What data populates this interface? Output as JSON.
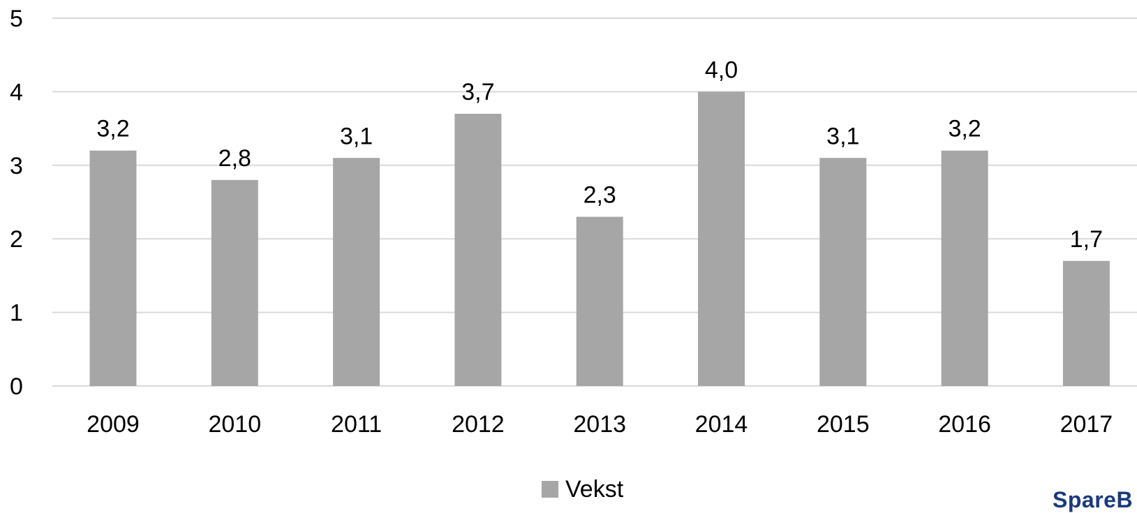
{
  "chart_data": {
    "type": "bar",
    "categories": [
      "2009",
      "2010",
      "2011",
      "2012",
      "2013",
      "2014",
      "2015",
      "2016",
      "2017"
    ],
    "series": [
      {
        "name": "Vekst",
        "values": [
          3.2,
          2.8,
          3.1,
          3.7,
          2.3,
          4.0,
          3.1,
          3.2,
          1.7
        ],
        "labels": [
          "3,2",
          "2,8",
          "3,1",
          "3,7",
          "2,3",
          "4,0",
          "3,1",
          "3,2",
          "1,7"
        ]
      }
    ],
    "ylim": [
      0,
      5
    ],
    "yticks": [
      "0",
      "1",
      "2",
      "3",
      "4",
      "5"
    ],
    "grid": true,
    "legend": "bottom-center",
    "colors": {
      "bar": "#a6a6a6",
      "grid": "#d9d9d9"
    }
  },
  "logo_text": "SpareB"
}
